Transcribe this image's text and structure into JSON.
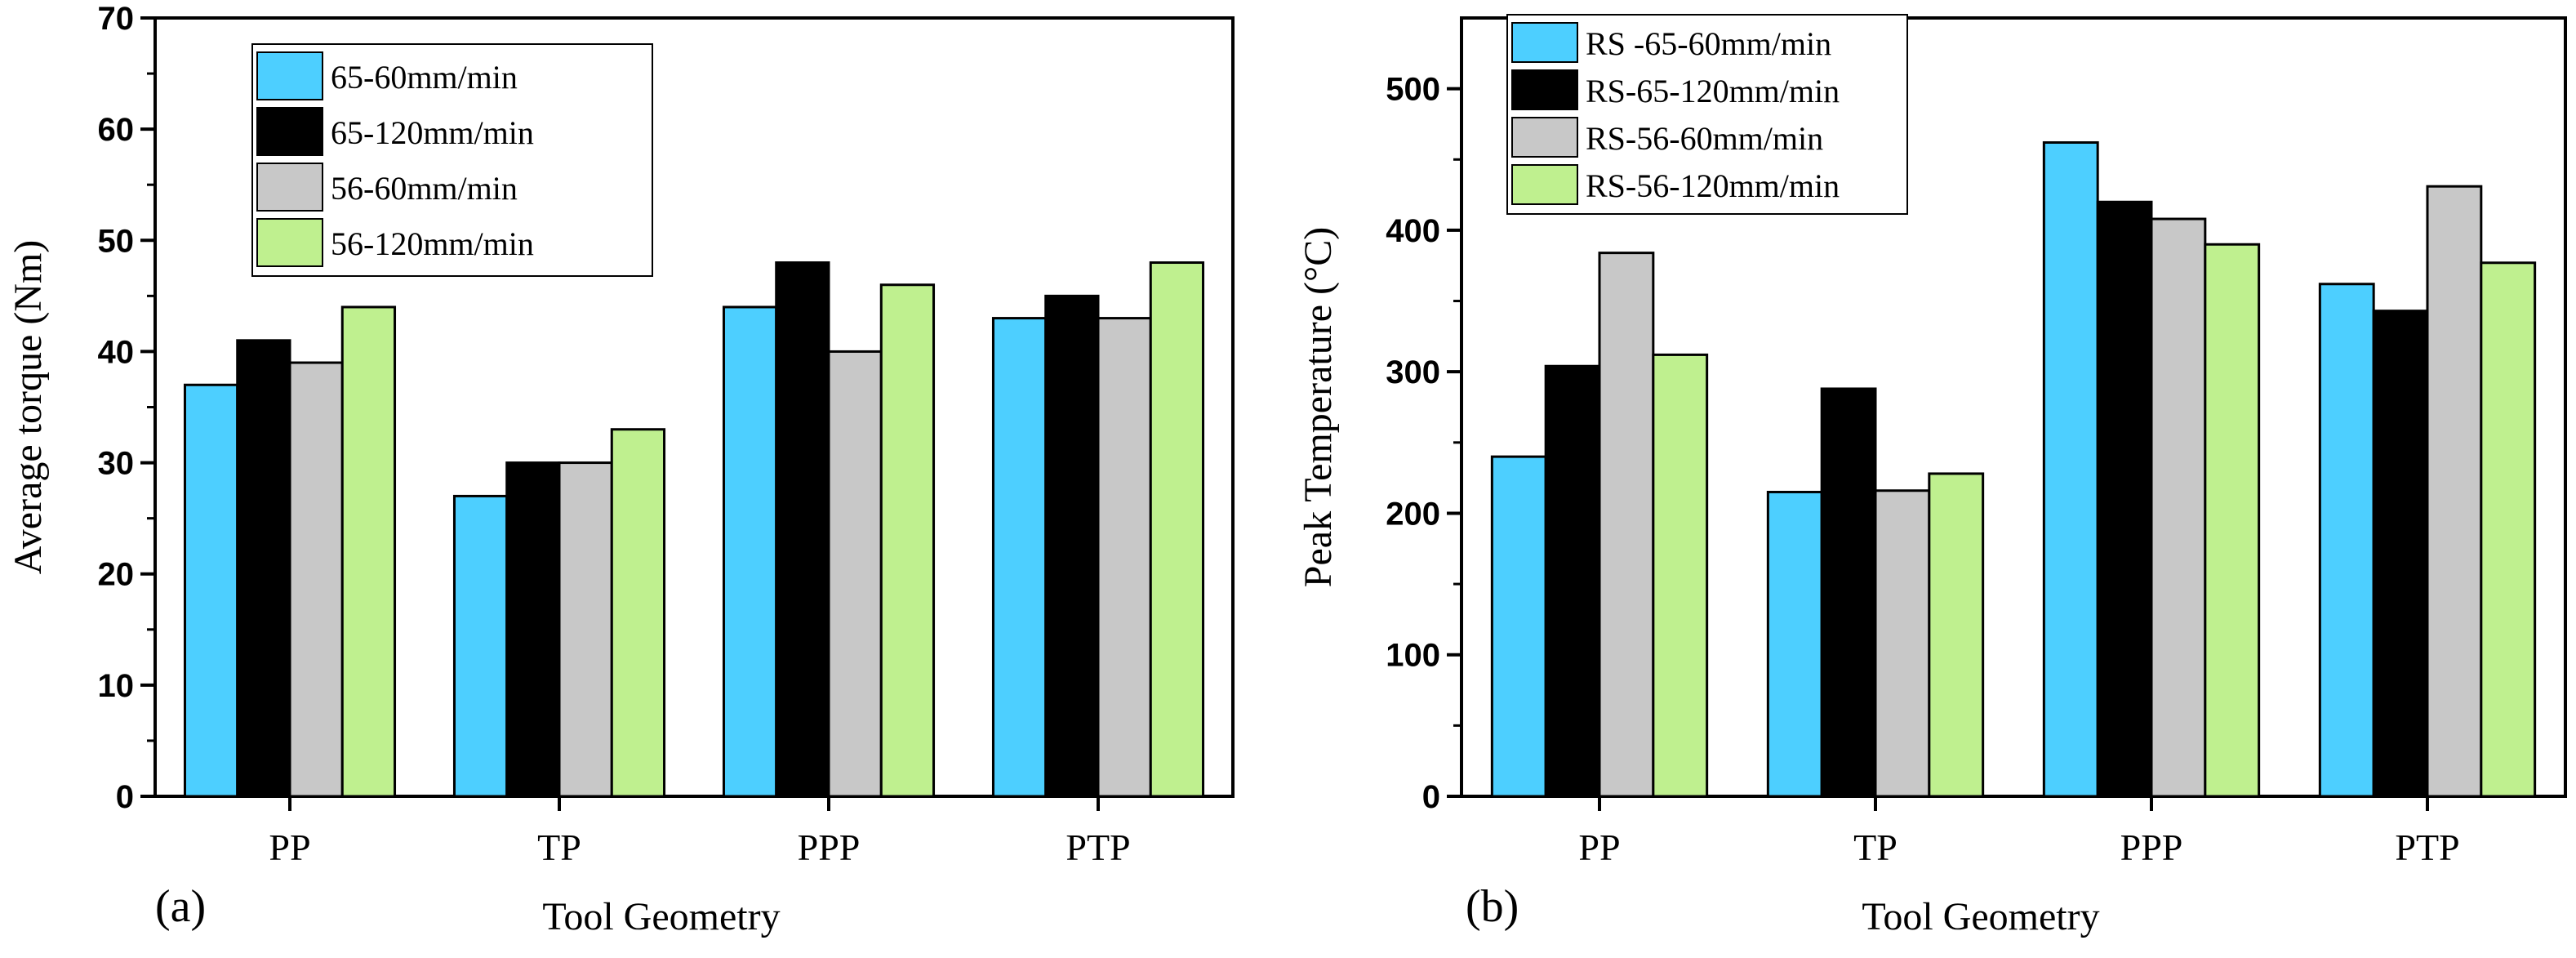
{
  "colors": {
    "s1": "#4dcfff",
    "s2": "#000000",
    "s3": "#c8c8c8",
    "s4": "#bff08f"
  },
  "chart_data": [
    {
      "type": "bar",
      "panel_label": "(a)",
      "categories": [
        "PP",
        "TP",
        "PPP",
        "PTP"
      ],
      "series": [
        {
          "name": "65-60mm/min",
          "values": [
            37,
            27,
            44,
            43
          ]
        },
        {
          "name": "65-120mm/min",
          "values": [
            41,
            30,
            48,
            45
          ]
        },
        {
          "name": "56-60mm/min",
          "values": [
            39,
            30,
            40,
            43
          ]
        },
        {
          "name": "56-120mm/min",
          "values": [
            44,
            33,
            46,
            48
          ]
        }
      ],
      "title": "",
      "xlabel": "Tool Geometry",
      "ylabel": "Average torque (Nm)",
      "ylim": [
        0,
        70
      ],
      "yticks": [
        0,
        10,
        20,
        30,
        40,
        50,
        60,
        70
      ],
      "legend_position": "top-left"
    },
    {
      "type": "bar",
      "panel_label": "(b)",
      "categories": [
        "PP",
        "TP",
        "PPP",
        "PTP"
      ],
      "series": [
        {
          "name": "RS -65-60mm/min",
          "values": [
            240,
            215,
            462,
            362
          ]
        },
        {
          "name": "RS-65-120mm/min",
          "values": [
            304,
            288,
            420,
            343
          ]
        },
        {
          "name": "RS-56-60mm/min",
          "values": [
            384,
            216,
            408,
            431
          ]
        },
        {
          "name": "RS-56-120mm/min",
          "values": [
            312,
            228,
            390,
            377
          ]
        }
      ],
      "title": "",
      "xlabel": "Tool Geometry",
      "ylabel": "Peak Temperature (°C)",
      "ylim": [
        0,
        550
      ],
      "yticks": [
        0,
        100,
        200,
        300,
        400,
        500
      ],
      "legend_position": "top-left"
    }
  ]
}
